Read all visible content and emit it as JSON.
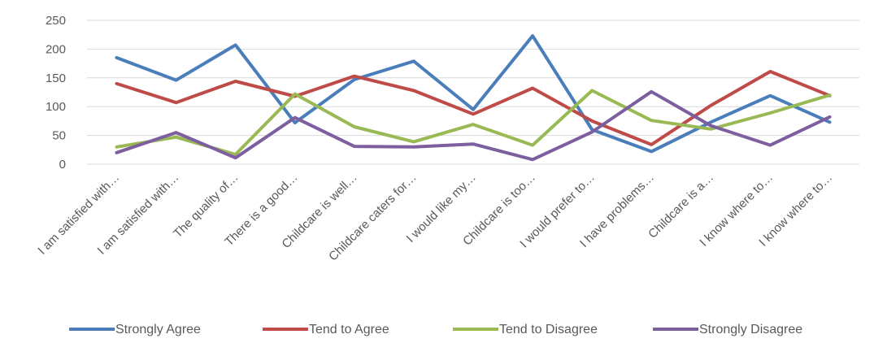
{
  "chart_data": {
    "type": "line",
    "title": "",
    "xlabel": "",
    "ylabel": "",
    "ylim": [
      0,
      250
    ],
    "yticks": [
      0,
      50,
      100,
      150,
      200,
      250
    ],
    "grid": true,
    "legend": "bottom",
    "categories": [
      "I am satisfied with…",
      "I am satisfied with…",
      "The quality of…",
      "There is a good…",
      "Childcare is well…",
      "Childcare caters for…",
      "I would like my…",
      "Childcare is too…",
      "I would prefer to…",
      "I have problems…",
      "Childcare is a…",
      "I know where to…",
      "I know where to…"
    ],
    "series": [
      {
        "name": "Strongly Agree",
        "color": "#4a7ebb",
        "values": [
          185,
          146,
          207,
          72,
          147,
          179,
          95,
          223,
          60,
          22,
          73,
          119,
          73
        ]
      },
      {
        "name": "Tend to Agree",
        "color": "#be4b48",
        "values": [
          140,
          107,
          144,
          118,
          153,
          128,
          87,
          132,
          75,
          34,
          102,
          161,
          119
        ]
      },
      {
        "name": "Tend to Disagree",
        "color": "#98b954",
        "values": [
          30,
          47,
          17,
          122,
          65,
          39,
          69,
          33,
          128,
          76,
          61,
          89,
          120
        ]
      },
      {
        "name": "Strongly Disagree",
        "color": "#7d5fa0",
        "values": [
          20,
          55,
          11,
          81,
          31,
          30,
          35,
          8,
          56,
          126,
          67,
          33,
          82
        ]
      }
    ]
  }
}
